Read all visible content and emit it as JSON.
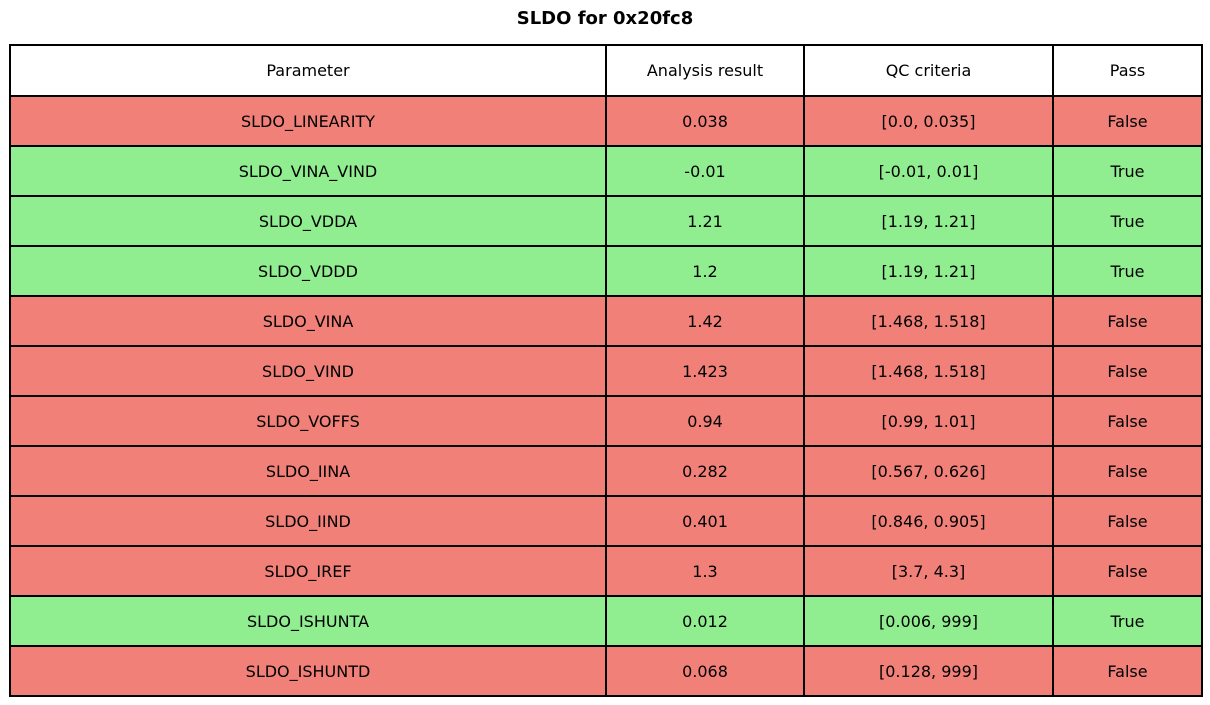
{
  "title": "SLDO for 0x20fc8",
  "colors": {
    "pass_row_background": "#90ee90",
    "fail_row_background": "#f08078",
    "border": "#000000",
    "text": "#000000"
  },
  "chart_data": {
    "type": "table",
    "title": "SLDO for 0x20fc8",
    "columns": [
      "Parameter",
      "Analysis result",
      "QC criteria",
      "Pass"
    ],
    "rows": [
      {
        "parameter": "SLDO_LINEARITY",
        "result": "0.038",
        "criteria": "[0.0, 0.035]",
        "pass": "False",
        "status": "fail"
      },
      {
        "parameter": "SLDO_VINA_VIND",
        "result": "-0.01",
        "criteria": "[-0.01, 0.01]",
        "pass": "True",
        "status": "pass"
      },
      {
        "parameter": "SLDO_VDDA",
        "result": "1.21",
        "criteria": "[1.19, 1.21]",
        "pass": "True",
        "status": "pass"
      },
      {
        "parameter": "SLDO_VDDD",
        "result": "1.2",
        "criteria": "[1.19, 1.21]",
        "pass": "True",
        "status": "pass"
      },
      {
        "parameter": "SLDO_VINA",
        "result": "1.42",
        "criteria": "[1.468, 1.518]",
        "pass": "False",
        "status": "fail"
      },
      {
        "parameter": "SLDO_VIND",
        "result": "1.423",
        "criteria": "[1.468, 1.518]",
        "pass": "False",
        "status": "fail"
      },
      {
        "parameter": "SLDO_VOFFS",
        "result": "0.94",
        "criteria": "[0.99, 1.01]",
        "pass": "False",
        "status": "fail"
      },
      {
        "parameter": "SLDO_IINA",
        "result": "0.282",
        "criteria": "[0.567, 0.626]",
        "pass": "False",
        "status": "fail"
      },
      {
        "parameter": "SLDO_IIND",
        "result": "0.401",
        "criteria": "[0.846, 0.905]",
        "pass": "False",
        "status": "fail"
      },
      {
        "parameter": "SLDO_IREF",
        "result": "1.3",
        "criteria": "[3.7, 4.3]",
        "pass": "False",
        "status": "fail"
      },
      {
        "parameter": "SLDO_ISHUNTA",
        "result": "0.012",
        "criteria": "[0.006, 999]",
        "pass": "True",
        "status": "pass"
      },
      {
        "parameter": "SLDO_ISHUNTD",
        "result": "0.068",
        "criteria": "[0.128, 999]",
        "pass": "False",
        "status": "fail"
      }
    ],
    "layout": {
      "header_background": "#ffffff",
      "grid": "all-borders",
      "title_position": "top-center"
    }
  }
}
